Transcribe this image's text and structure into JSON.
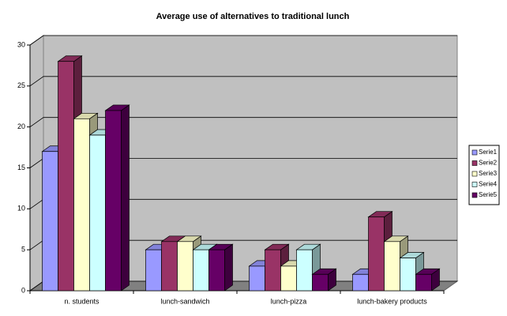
{
  "chart_data": {
    "type": "bar3d",
    "title": "Average use of alternatives to traditional lunch",
    "categories": [
      "n. students",
      "lunch-sandwich",
      "lunch-pizza",
      "lunch-bakery products"
    ],
    "series": [
      {
        "name": "Serie1",
        "color": "#9999ff",
        "values": [
          17,
          5,
          3,
          2
        ]
      },
      {
        "name": "Serie2",
        "color": "#993366",
        "values": [
          28,
          6,
          5,
          9
        ]
      },
      {
        "name": "Serie3",
        "color": "#ffffcc",
        "values": [
          21,
          6,
          3,
          6
        ]
      },
      {
        "name": "Serie4",
        "color": "#ccffff",
        "values": [
          19,
          5,
          5,
          4
        ]
      },
      {
        "name": "Serie5",
        "color": "#660066",
        "values": [
          22,
          5,
          2,
          2
        ]
      }
    ],
    "ylim": [
      0,
      30
    ],
    "yticks": [
      0,
      5,
      10,
      15,
      20,
      25,
      30
    ],
    "grid": true,
    "legend": "right"
  }
}
